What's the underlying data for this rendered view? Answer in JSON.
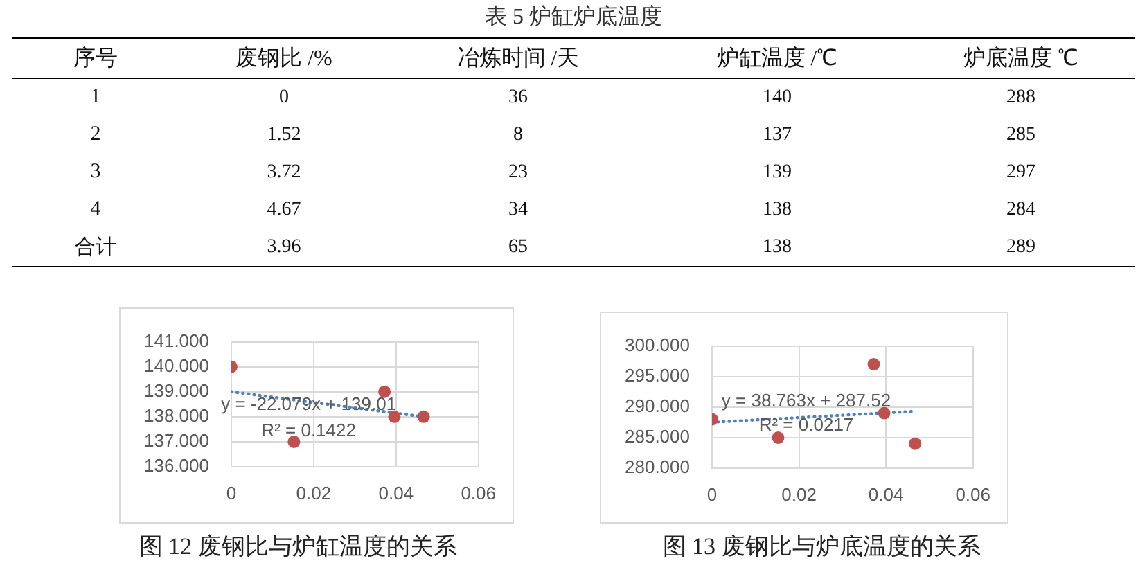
{
  "chart_data": [
    {
      "type": "heatmap",
      "title": "表 5 炉缸炉底温度",
      "ylabel": "序号",
      "categories": [
        "废钢比 /%",
        "冶炼时间 /天",
        "炉缸温度 /℃",
        "炉底温度 ℃"
      ],
      "y_categories": [
        "1",
        "2",
        "3",
        "4",
        "合计"
      ],
      "cells": [
        [
          0,
          36,
          140,
          288
        ],
        [
          1.52,
          8,
          137,
          285
        ],
        [
          3.72,
          23,
          139,
          297
        ],
        [
          4.67,
          34,
          138,
          284
        ],
        [
          3.96,
          65,
          138,
          289
        ]
      ],
      "data_labels": true
    },
    {
      "type": "scatter",
      "title": "图 12 废钢比与炉缸温度的关系",
      "series": [
        {
          "type": "scatter",
          "color": "#c0504d",
          "marker": "circle",
          "x": [
            0,
            0.0152,
            0.0372,
            0.0396,
            0.0467
          ],
          "values": [
            140,
            137,
            139,
            138,
            138
          ]
        },
        {
          "type": "line",
          "color": "#4f81bd",
          "marker": "none",
          "line_style": "dotted",
          "x": [
            0,
            0.0467
          ],
          "values": [
            139,
            138
          ]
        }
      ],
      "xlim": [
        0,
        0.06
      ],
      "xticks": [
        0,
        0.02,
        0.04,
        0.06
      ],
      "ylim": [
        136,
        141
      ],
      "yticks": [
        {
          "value": 136,
          "label": "136.000"
        },
        {
          "value": 137,
          "label": "137.000"
        },
        {
          "value": 138,
          "label": "138.000"
        },
        {
          "value": 139,
          "label": "139.000"
        },
        {
          "value": 140,
          "label": "140.000"
        },
        {
          "value": 141,
          "label": "141.000"
        }
      ],
      "grid": true,
      "annotations": [
        "y = -22.079x + 139.01",
        "R² = 0.1422"
      ]
    },
    {
      "type": "scatter",
      "title": "图 13 废钢比与炉底温度的关系",
      "series": [
        {
          "type": "scatter",
          "color": "#c0504d",
          "marker": "circle",
          "x": [
            0,
            0.0152,
            0.0372,
            0.0396,
            0.0467
          ],
          "values": [
            288,
            285,
            297,
            289,
            284
          ]
        },
        {
          "type": "line",
          "color": "#4f81bd",
          "marker": "none",
          "line_style": "dotted",
          "x": [
            0,
            0.0467
          ],
          "values": [
            287.5,
            289.3
          ]
        }
      ],
      "xlim": [
        0,
        0.06
      ],
      "xticks": [
        0,
        0.02,
        0.04,
        0.06
      ],
      "ylim": [
        280,
        300
      ],
      "yticks": [
        {
          "value": 280,
          "label": "280.000"
        },
        {
          "value": 285,
          "label": "285.000"
        },
        {
          "value": 290,
          "label": "290.000"
        },
        {
          "value": 295,
          "label": "295.000"
        },
        {
          "value": 300,
          "label": "300.000"
        }
      ],
      "grid": true,
      "annotations": [
        "y = 38.763x + 287.52",
        "R² = 0.0217"
      ]
    }
  ]
}
